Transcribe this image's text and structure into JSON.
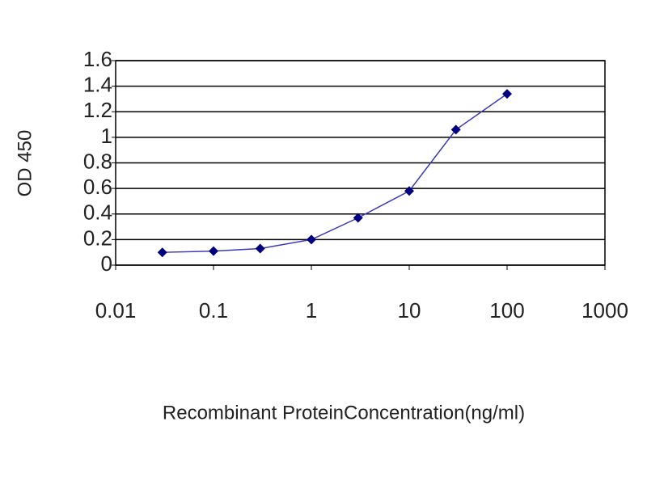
{
  "chart_data": {
    "type": "line",
    "y_label": "OD 450",
    "x_label": "Recombinant ProteinConcentration(ng/ml)",
    "x": [
      0.03,
      0.1,
      0.3,
      1,
      3,
      10,
      30,
      100
    ],
    "series": [
      {
        "color": "#000080",
        "values": [
          0.1,
          0.11,
          0.13,
          0.2,
          0.37,
          0.58,
          1.06,
          1.34
        ]
      }
    ],
    "xscale": "log",
    "xlim": [
      0.01,
      1000
    ],
    "xticks": [
      0.01,
      0.1,
      1,
      10,
      100,
      1000
    ],
    "ylim": [
      0,
      1.6
    ],
    "yticks": [
      0,
      0.2,
      0.4,
      0.6,
      0.8,
      1,
      1.2,
      1.4,
      1.6
    ],
    "grid": true
  }
}
